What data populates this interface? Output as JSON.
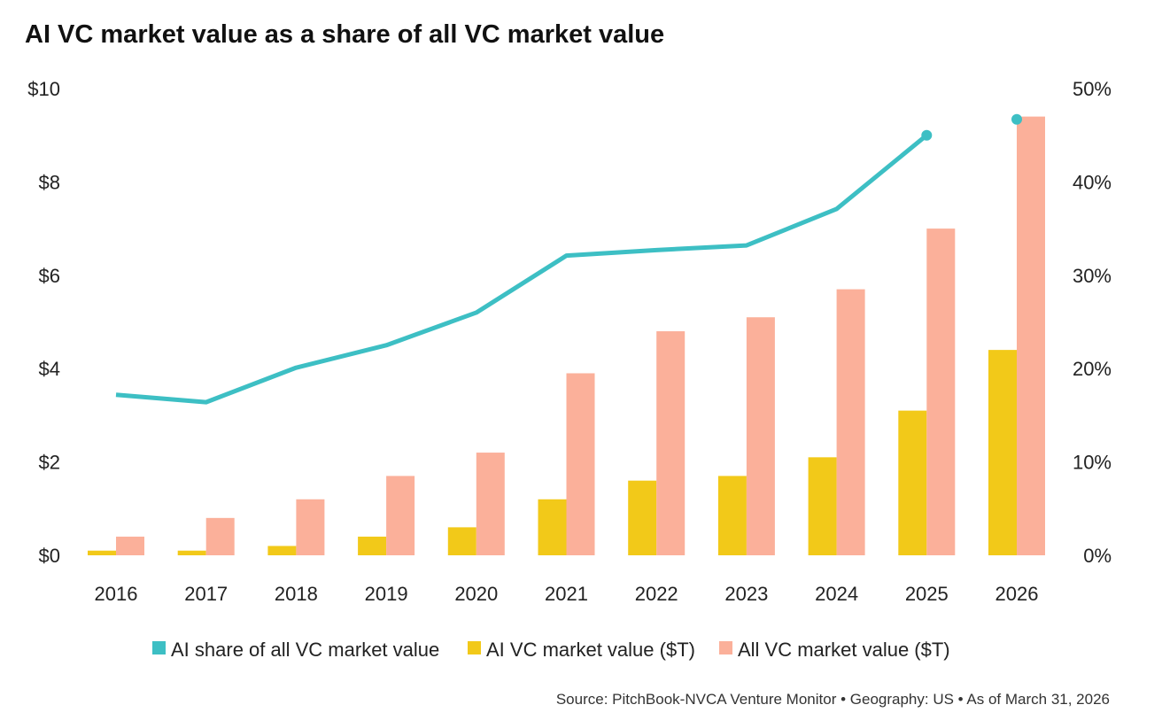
{
  "chart_data": {
    "type": "bar",
    "title": "AI VC market value as a share of all VC market value",
    "categories": [
      "2016",
      "2017",
      "2018",
      "2019",
      "2020",
      "2021",
      "2022",
      "2023",
      "2024",
      "2025",
      "2026"
    ],
    "series": [
      {
        "name": "AI share of all VC market value",
        "type": "line",
        "axis": "right",
        "color": "#3dbfc4",
        "values": [
          17.2,
          16.4,
          20.1,
          22.5,
          26.0,
          32.1,
          32.7,
          33.2,
          37.1,
          45.0,
          46.7
        ]
      },
      {
        "name": "AI VC market value ($T)",
        "type": "bar",
        "axis": "left",
        "color": "#f2c919",
        "values": [
          0.1,
          0.1,
          0.2,
          0.4,
          0.6,
          1.2,
          1.6,
          1.7,
          2.1,
          3.1,
          4.4
        ]
      },
      {
        "name": "All VC market value ($T)",
        "type": "bar",
        "axis": "left",
        "color": "#fbb09a",
        "values": [
          0.4,
          0.8,
          1.2,
          1.7,
          2.2,
          3.9,
          4.8,
          5.1,
          5.7,
          7.0,
          9.4
        ]
      }
    ],
    "left_axis": {
      "ylim": [
        0,
        10
      ],
      "ticks": [
        "$0",
        "$2",
        "$4",
        "$6",
        "$8",
        "$10"
      ],
      "tick_values": [
        0,
        2,
        4,
        6,
        8,
        10
      ]
    },
    "right_axis": {
      "ylim": [
        0,
        50
      ],
      "ticks": [
        "0%",
        "10%",
        "20%",
        "30%",
        "40%",
        "50%"
      ],
      "tick_values": [
        0,
        10,
        20,
        30,
        40,
        50
      ]
    },
    "grid": false,
    "legend_position": "bottom",
    "source": "Source: PitchBook-NVCA Venture Monitor • Geography: US • As of March 31, 2026"
  }
}
